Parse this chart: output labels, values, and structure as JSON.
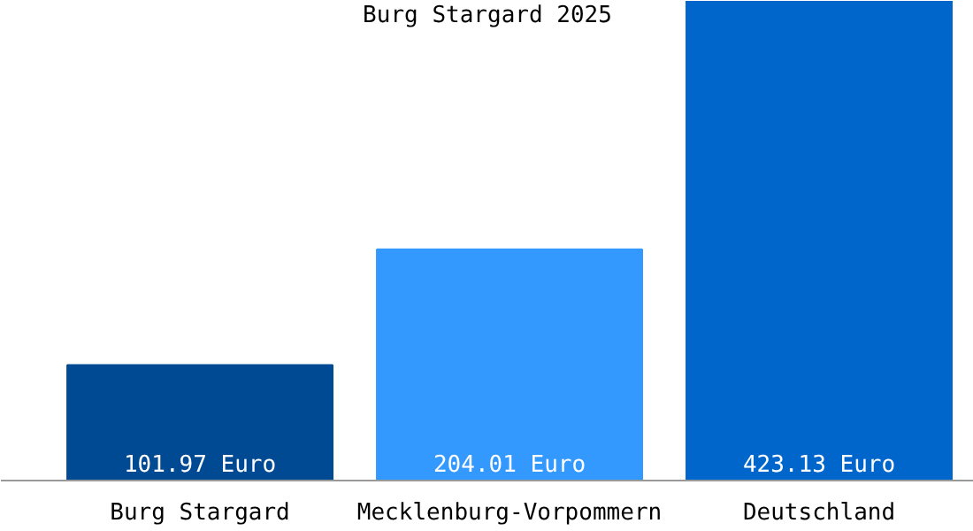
{
  "chart_data": {
    "type": "bar",
    "title": "Burg Stargard 2025",
    "categories": [
      "Burg Stargard",
      "Mecklenburg-Vorpommern",
      "Deutschland"
    ],
    "values": [
      101.97,
      204.01,
      423.13
    ],
    "value_labels": [
      "101.97 Euro",
      "204.01 Euro",
      "423.13 Euro"
    ],
    "colors": [
      "#004a93",
      "#3399ff",
      "#0066cc"
    ]
  }
}
